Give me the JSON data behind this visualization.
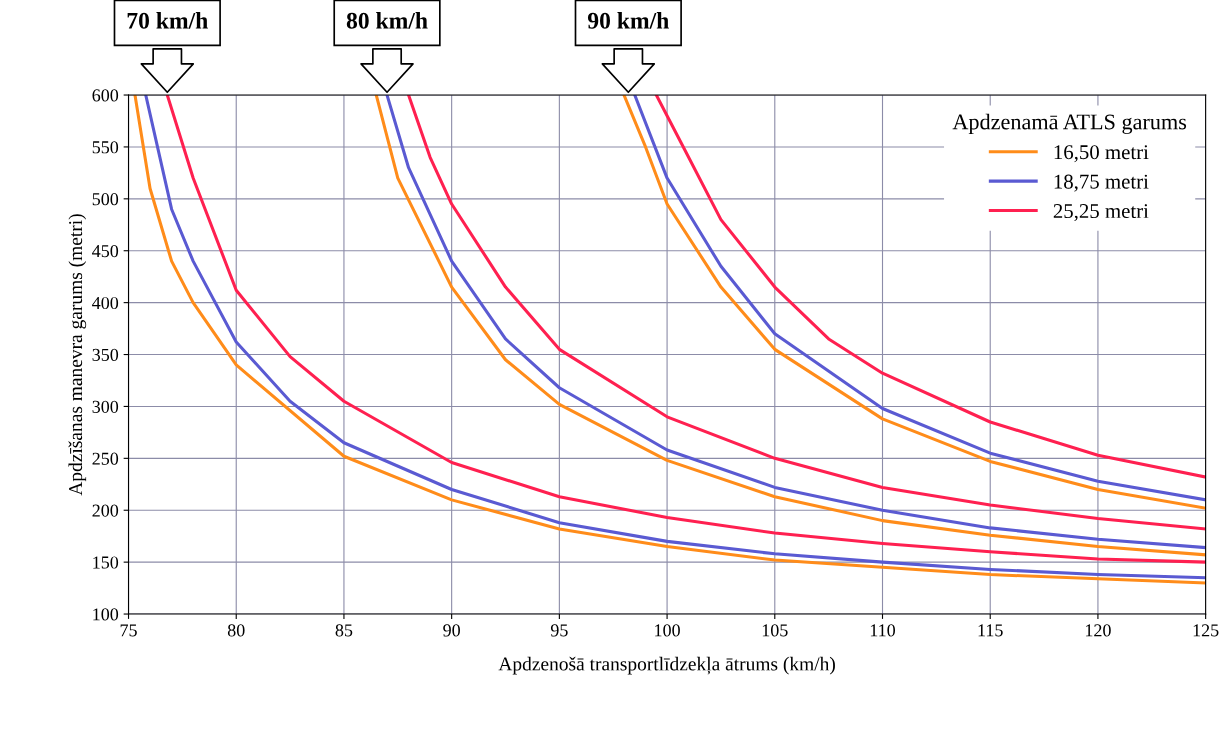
{
  "chart_data": {
    "type": "line",
    "xlabel": "Apdzenošā transportlīdzekļa ātrums (km/h)",
    "ylabel": "Apdzīšanas manevra garums (metri)",
    "legend_title": "Apdzenamā ATLS garums",
    "xlim": [
      75,
      125
    ],
    "xticks": [
      75,
      80,
      85,
      90,
      95,
      100,
      105,
      110,
      115,
      120,
      125
    ],
    "ylim": [
      100,
      600
    ],
    "yticks": [
      100,
      150,
      200,
      250,
      300,
      350,
      400,
      450,
      500,
      550,
      600
    ],
    "grid": true,
    "legend": "top right",
    "marker": "none",
    "line_style": "solid",
    "annotations": [
      {
        "text": "70 km/h",
        "x": 76.8,
        "y": 600
      },
      {
        "text": "80 km/h",
        "x": 87,
        "y": 600
      },
      {
        "text": "90 km/h",
        "x": 98.2,
        "y": 600
      }
    ],
    "series": [
      {
        "name": "16,50 metri",
        "color": "#ff8c1a",
        "x": [
          75.3,
          76,
          77,
          78,
          80,
          85,
          90,
          95,
          100,
          105,
          110,
          115,
          120,
          125
        ],
        "values": [
          600,
          510,
          440,
          400,
          340,
          252,
          210,
          182,
          165,
          152,
          145,
          138,
          134,
          130
        ]
      },
      {
        "name": "18,75 metri",
        "color": "#5a5ad2",
        "x": [
          75.8,
          77,
          78,
          80,
          82.5,
          85,
          90,
          95,
          100,
          105,
          110,
          115,
          120,
          125
        ],
        "values": [
          600,
          490,
          440,
          362,
          305,
          265,
          220,
          188,
          170,
          158,
          150,
          143,
          138,
          135
        ]
      },
      {
        "name": "25,25 metri",
        "color": "#ff2050",
        "x": [
          76.8,
          78,
          80,
          82.5,
          85,
          90,
          95,
          100,
          105,
          110,
          115,
          120,
          125
        ],
        "values": [
          600,
          520,
          412,
          348,
          305,
          246,
          213,
          193,
          178,
          168,
          160,
          153,
          150
        ]
      },
      {
        "color": "#ff8c1a",
        "x": [
          86.5,
          87.5,
          90,
          92.5,
          95,
          100,
          105,
          110,
          115,
          120,
          125
        ],
        "values": [
          600,
          520,
          415,
          345,
          302,
          248,
          213,
          190,
          176,
          165,
          157
        ]
      },
      {
        "color": "#5a5ad2",
        "x": [
          87,
          88,
          90,
          92.5,
          95,
          100,
          105,
          110,
          115,
          120,
          125
        ],
        "values": [
          600,
          530,
          440,
          365,
          318,
          258,
          222,
          200,
          183,
          172,
          164
        ]
      },
      {
        "color": "#ff2050",
        "x": [
          88,
          89,
          90,
          92.5,
          95,
          100,
          105,
          110,
          115,
          120,
          125
        ],
        "values": [
          600,
          540,
          495,
          415,
          355,
          290,
          250,
          222,
          205,
          192,
          182
        ]
      },
      {
        "color": "#ff8c1a",
        "x": [
          98,
          99,
          100,
          102.5,
          105,
          110,
          115,
          120,
          125
        ],
        "values": [
          600,
          550,
          495,
          415,
          355,
          288,
          247,
          220,
          202
        ]
      },
      {
        "color": "#5a5ad2",
        "x": [
          98.5,
          100,
          102.5,
          105,
          110,
          115,
          120,
          125
        ],
        "values": [
          600,
          520,
          435,
          370,
          298,
          255,
          228,
          210
        ]
      },
      {
        "color": "#ff2050",
        "x": [
          99.5,
          100.5,
          102.5,
          105,
          107.5,
          110,
          115,
          120,
          125
        ],
        "values": [
          600,
          560,
          480,
          415,
          365,
          332,
          285,
          253,
          232
        ]
      }
    ]
  }
}
